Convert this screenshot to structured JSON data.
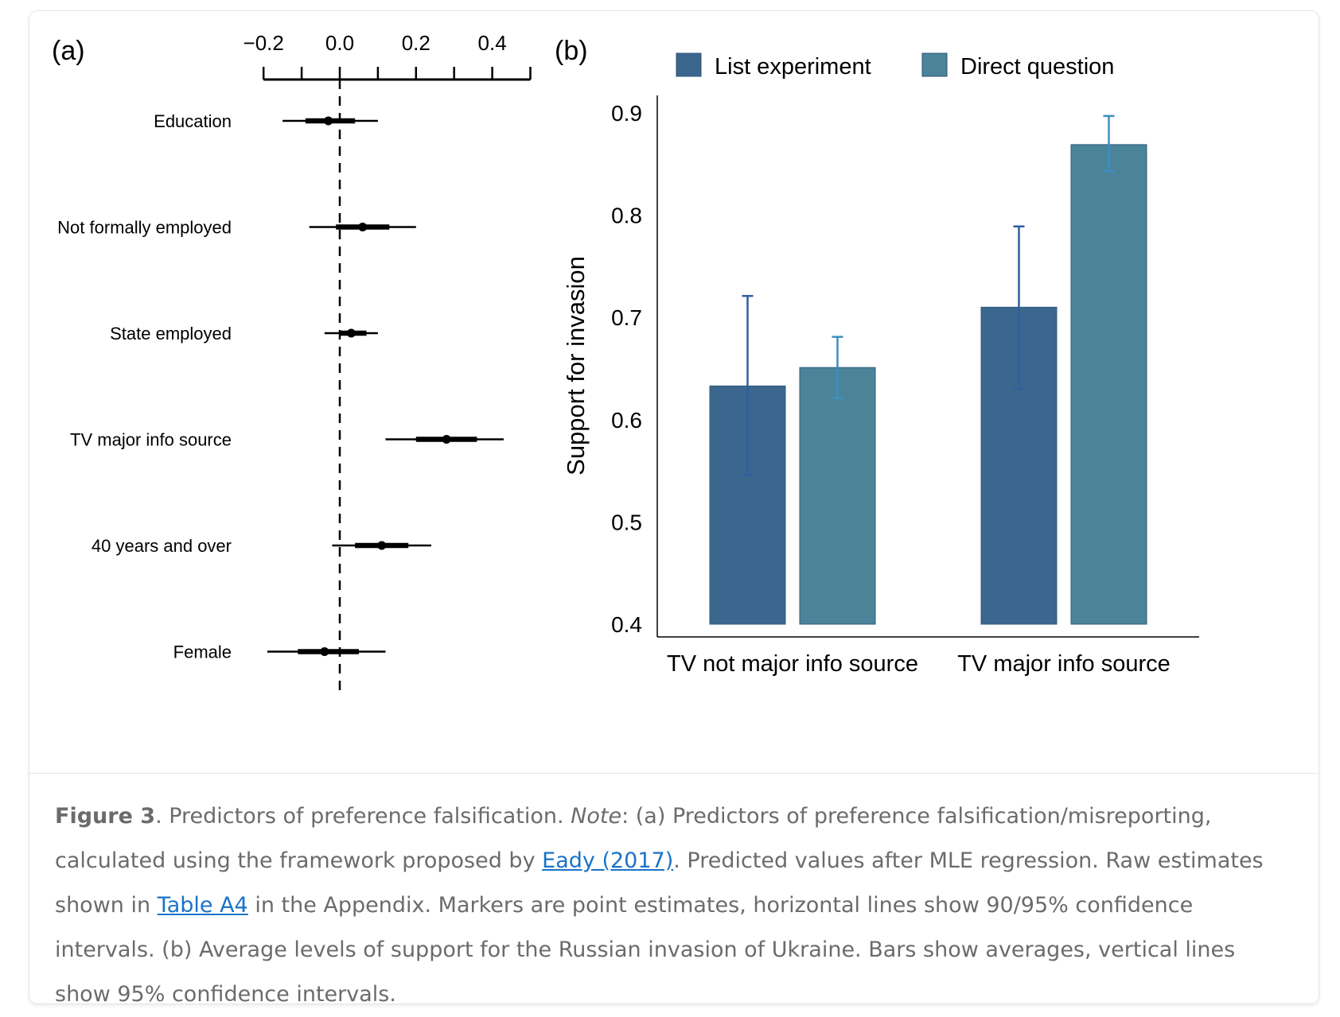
{
  "chart_data": [
    {
      "panel": "(a)",
      "type": "scatter",
      "categories": [
        "Education",
        "Not formally employed",
        "State employed",
        "TV major info source",
        "40 years and over",
        "Female"
      ],
      "estimates": [
        -0.03,
        0.06,
        0.03,
        0.28,
        0.11,
        -0.04
      ],
      "ci_90": [
        [
          -0.09,
          0.04
        ],
        [
          -0.01,
          0.13
        ],
        [
          0.0,
          0.07
        ],
        [
          0.2,
          0.36
        ],
        [
          0.04,
          0.18
        ],
        [
          -0.11,
          0.05
        ]
      ],
      "ci_95": [
        [
          -0.15,
          0.1
        ],
        [
          -0.08,
          0.2
        ],
        [
          -0.04,
          0.1
        ],
        [
          0.12,
          0.43
        ],
        [
          -0.02,
          0.24
        ],
        [
          -0.19,
          0.12
        ]
      ],
      "xticks": [
        "−0.2",
        "0.0",
        "0.2",
        "0.4"
      ],
      "xtick_values": [
        -0.2,
        0.0,
        0.2,
        0.4
      ],
      "xlim": [
        -0.2,
        0.5
      ],
      "reference_line": 0.0,
      "grid": false
    },
    {
      "panel": "(b)",
      "type": "bar",
      "categories": [
        "TV not major info source",
        "TV major info source"
      ],
      "series": [
        {
          "name": "List experiment",
          "values": [
            0.633,
            0.71
          ],
          "ci_low": [
            0.546,
            0.63
          ],
          "ci_high": [
            0.721,
            0.789
          ],
          "color": "#3b668e"
        },
        {
          "name": "Direct question",
          "values": [
            0.651,
            0.869
          ],
          "ci_low": [
            0.621,
            0.843
          ],
          "ci_high": [
            0.681,
            0.897
          ],
          "color": "#4b8399"
        }
      ],
      "ylabel": "Support for invasion",
      "yticks": [
        "0.4",
        "0.5",
        "0.6",
        "0.7",
        "0.8",
        "0.9"
      ],
      "ytick_values": [
        0.4,
        0.5,
        0.6,
        0.7,
        0.8,
        0.9
      ],
      "ylim": [
        0.4,
        0.9
      ],
      "legend_position": "top",
      "grid": false
    }
  ],
  "caption": {
    "figure_label": "Figure 3",
    "after_label": ". Predictors of preference falsification. ",
    "note_label": "Note",
    "note_text": ": (a) Predictors of preference falsification/misreporting, calculated using the framework proposed by ",
    "link_eady": "Eady (2017)",
    "text_2": ". Predicted values after MLE regression. Raw estimates shown in ",
    "link_table": "Table A4",
    "text_3": " in the Appendix. Markers are point estimates, horizontal lines show 90/95% confidence intervals. (b) Average levels of support for the Russian invasion of Ukraine. Bars show averages, vertical lines show 95% confidence intervals."
  },
  "colors": {
    "list_experiment": "#3b668e",
    "direct_question": "#4b8399",
    "error_bar_list": "#2f5f9e",
    "error_bar_direct": "#3d8fc0",
    "caption_text": "#6b6b6b",
    "link": "#1a73c8"
  }
}
